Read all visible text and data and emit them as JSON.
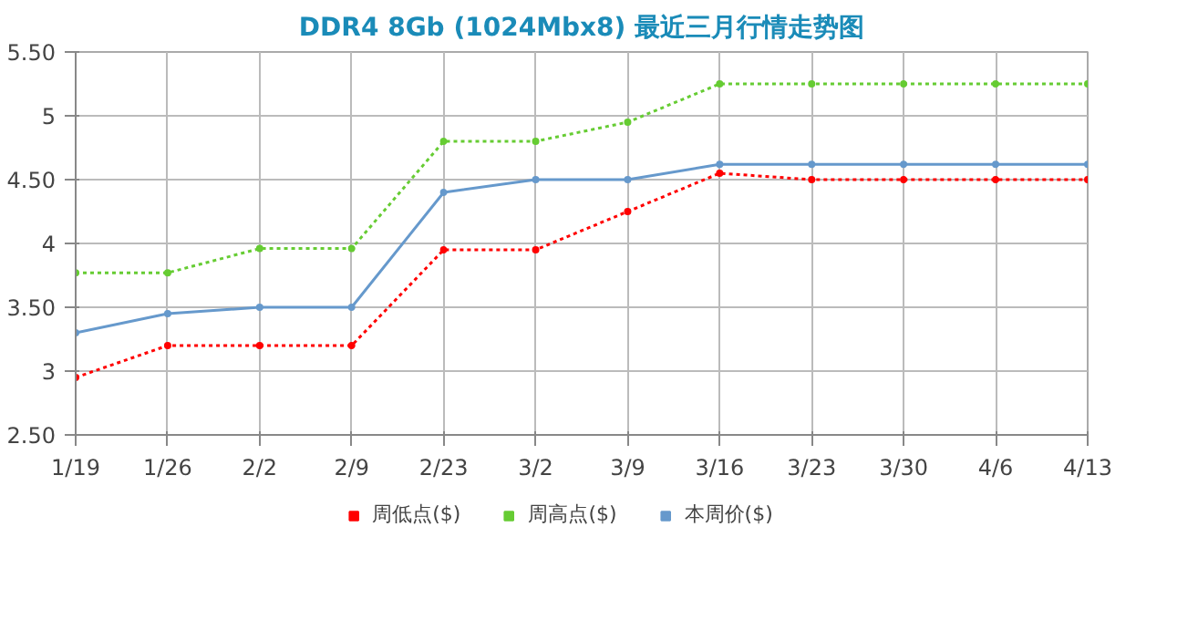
{
  "chart_data": {
    "type": "line",
    "title": "DDR4 8Gb (1024Mbx8) 最近三月行情走势图",
    "categories": [
      "1/19",
      "1/26",
      "2/2",
      "2/9",
      "2/23",
      "3/2",
      "3/9",
      "3/16",
      "3/23",
      "3/30",
      "4/6",
      "4/13"
    ],
    "series": [
      {
        "name": "周低点($)",
        "color": "#ff0000",
        "line_style": "dotted",
        "values": [
          2.95,
          3.2,
          3.2,
          3.2,
          3.95,
          3.95,
          4.25,
          4.55,
          4.5,
          4.5,
          4.5,
          4.5
        ]
      },
      {
        "name": "周高点($)",
        "color": "#66cc33",
        "line_style": "dotted",
        "values": [
          3.77,
          3.77,
          3.96,
          3.96,
          4.8,
          4.8,
          4.95,
          5.25,
          5.25,
          5.25,
          5.25,
          5.25
        ]
      },
      {
        "name": "本周价($)",
        "color": "#6699cc",
        "line_style": "solid",
        "values": [
          3.3,
          3.45,
          3.5,
          3.5,
          4.4,
          4.5,
          4.5,
          4.62,
          4.62,
          4.62,
          4.62,
          4.62
        ]
      }
    ],
    "ylim": [
      2.5,
      5.5
    ],
    "yticks": [
      {
        "value": 2.5,
        "label": "2.50"
      },
      3,
      {
        "value": 3.5,
        "label": "3.50"
      },
      4,
      {
        "value": 4.5,
        "label": "4.50"
      },
      5,
      {
        "value": 5.5,
        "label": "5.50"
      }
    ],
    "grid": true,
    "legend": "bottom",
    "marker": "circle"
  }
}
